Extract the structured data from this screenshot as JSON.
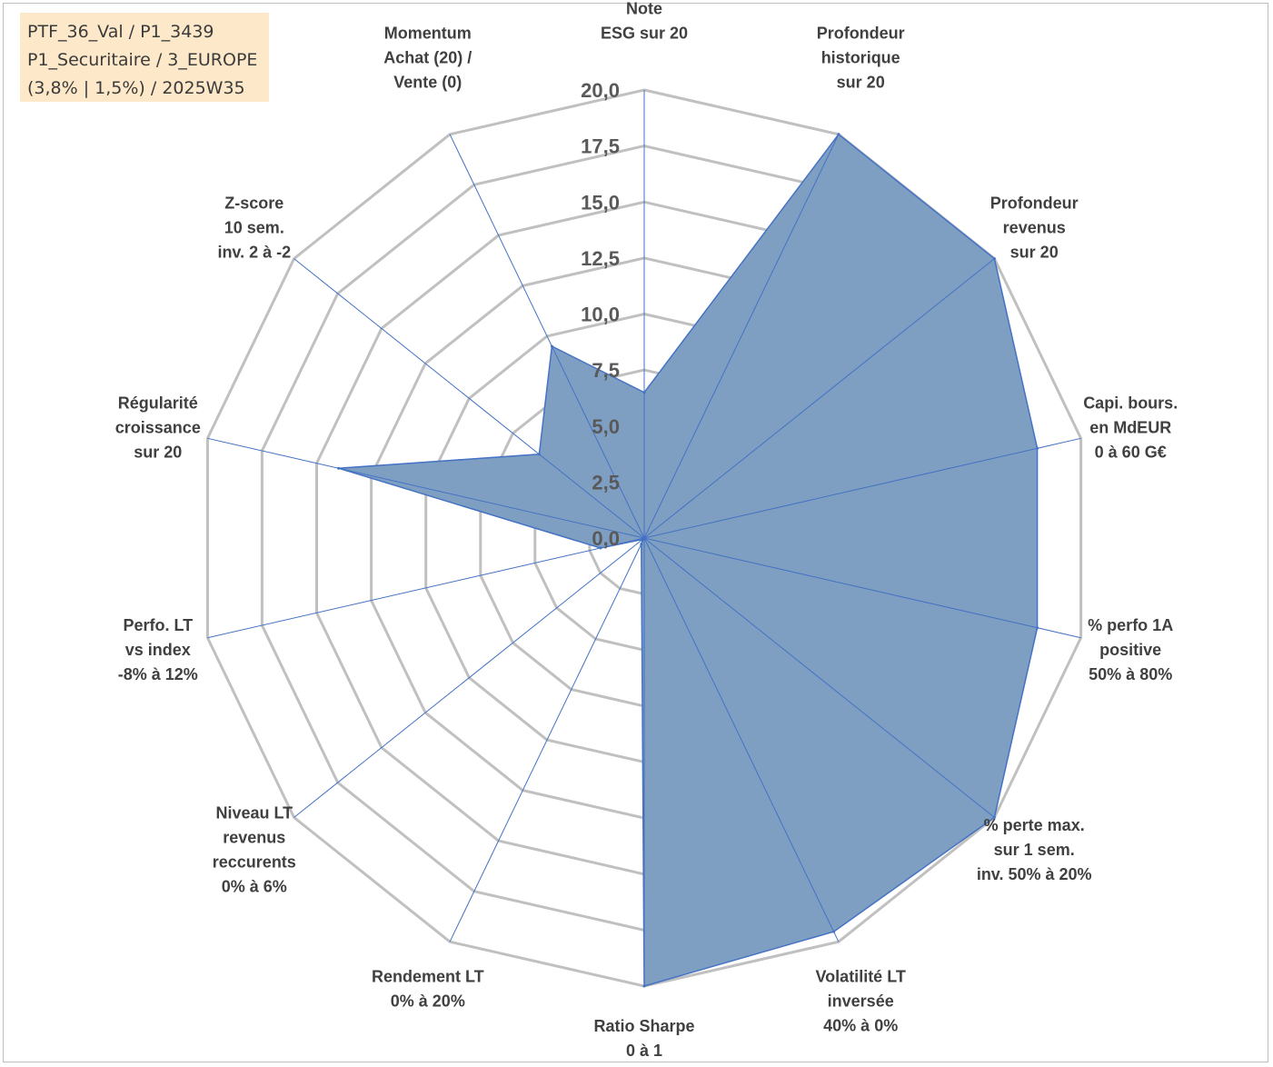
{
  "info": {
    "line1": "PTF_36_Val / P1_3439",
    "line2": "P1_Securitaire / 3_EUROPE",
    "line3": "(3,8% | 1,5%) / 2025W35"
  },
  "chart_data": {
    "type": "radar",
    "rmin": 0,
    "rmax": 20,
    "ticks": [
      "0,0",
      "2,5",
      "5,0",
      "7,5",
      "10,0",
      "12,5",
      "15,0",
      "17,5",
      "20,0"
    ],
    "tick_values": [
      0,
      2.5,
      5,
      7.5,
      10,
      12.5,
      15,
      17.5,
      20
    ],
    "categories": [
      [
        "Note",
        "ESG sur 20"
      ],
      [
        "Profondeur",
        "historique",
        "sur 20"
      ],
      [
        "Profondeur",
        "revenus",
        "sur 20"
      ],
      [
        "Capi. bours.",
        "en MdEUR",
        "0 à 60 G€"
      ],
      [
        "% perfo 1A",
        "positive",
        "50% à 80%"
      ],
      [
        "% perte max.",
        "sur 1 sem.",
        "inv. 50% à 20%"
      ],
      [
        "Volatilité LT",
        "inversée",
        "40% à 0%"
      ],
      [
        "Ratio Sharpe",
        "0 à 1"
      ],
      [
        "Rendement LT",
        "0% à 20%"
      ],
      [
        "Niveau LT",
        "revenus",
        "reccurents",
        "0% à 6%"
      ],
      [
        "Perfo. LT",
        "vs index",
        "-8% à 12%"
      ],
      [
        "Régularité",
        "croissance",
        "sur 20"
      ],
      [
        "Z-score",
        "10 sem.",
        "inv. 2 à -2"
      ],
      [
        "Momentum",
        "Achat (20) /",
        "Vente (0)"
      ]
    ],
    "series": [
      {
        "values": [
          6.5,
          20,
          20,
          18,
          18,
          20,
          19.5,
          20,
          0.3,
          0.1,
          2,
          14,
          6,
          9.5
        ]
      }
    ],
    "colors": {
      "fill": "#7f9fc2",
      "line": "#4472c4",
      "grid": "#c0c0c0"
    }
  }
}
